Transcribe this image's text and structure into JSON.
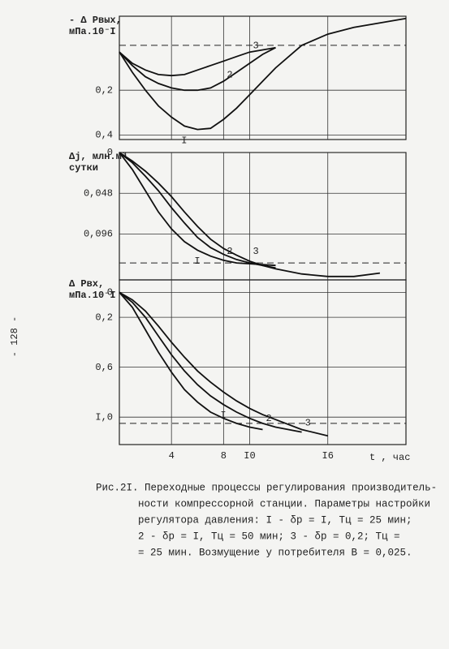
{
  "chart_data": [
    {
      "type": "line",
      "ylabel": [
        "- Δ Pвых,",
        "мПа.10⁻I"
      ],
      "inverted": true,
      "x": [
        0,
        1,
        2,
        3,
        4,
        5,
        6,
        7,
        8,
        9,
        10,
        11,
        12,
        14,
        16,
        18,
        20,
        22
      ],
      "xlim": [
        0,
        22
      ],
      "xticks": [
        4,
        8,
        10,
        16
      ],
      "ylim": [
        -0.13,
        0.42
      ],
      "yticks": [
        {
          "value": 0.2,
          "label": "0,2"
        },
        {
          "value": 0.4,
          "label": "0,4"
        }
      ],
      "hline": 0,
      "grid": true,
      "series": [
        {
          "name": "I",
          "color": "#111",
          "values": [
            0.03,
            0.12,
            0.2,
            0.27,
            0.32,
            0.36,
            0.375,
            0.37,
            0.33,
            0.28,
            0.22,
            0.16,
            0.1,
            0.0,
            -0.05,
            -0.08,
            -0.1,
            -0.12
          ]
        },
        {
          "name": "2",
          "color": "#111",
          "values": [
            0.03,
            0.09,
            0.14,
            0.17,
            0.19,
            0.2,
            0.2,
            0.19,
            0.16,
            0.12,
            0.08,
            0.04,
            0.01,
            null,
            null,
            null,
            null,
            null
          ]
        },
        {
          "name": "3",
          "color": "#111",
          "values": [
            0.03,
            0.08,
            0.11,
            0.13,
            0.135,
            0.13,
            0.11,
            0.09,
            0.07,
            0.05,
            0.03,
            0.02,
            0.01,
            null,
            null,
            null,
            null,
            null
          ]
        }
      ]
    },
    {
      "type": "line",
      "ylabel": [
        "Δj, млн.м³",
        "сутки"
      ],
      "inverted": true,
      "x": [
        0,
        1,
        2,
        3,
        4,
        5,
        6,
        7,
        8,
        9,
        10,
        11,
        12,
        14,
        16,
        18,
        20,
        22
      ],
      "xlim": [
        0,
        22
      ],
      "xticks": [
        4,
        8,
        10,
        16
      ],
      "ylim": [
        0,
        0.15
      ],
      "yticks": [
        0,
        {
          "value": 0.048,
          "label": "0,048"
        },
        {
          "value": 0.096,
          "label": "0,096"
        }
      ],
      "hline": 0.13,
      "grid": true,
      "series": [
        {
          "name": "I",
          "color": "#111",
          "values": [
            0,
            0.02,
            0.045,
            0.07,
            0.09,
            0.105,
            0.115,
            0.122,
            0.127,
            0.13,
            0.131,
            0.132,
            0.133,
            null,
            null,
            null,
            null,
            null
          ]
        },
        {
          "name": "2",
          "color": "#111",
          "values": [
            0,
            0.012,
            0.028,
            0.045,
            0.065,
            0.083,
            0.1,
            0.112,
            0.12,
            0.126,
            0.13,
            0.133,
            0.136,
            null,
            null,
            null,
            null,
            null
          ]
        },
        {
          "name": "3",
          "color": "#111",
          "values": [
            0,
            0.01,
            0.022,
            0.036,
            0.052,
            0.07,
            0.087,
            0.102,
            0.113,
            0.121,
            0.128,
            0.133,
            0.137,
            0.143,
            0.146,
            0.146,
            0.142,
            null
          ]
        }
      ]
    },
    {
      "type": "line",
      "ylabel": [
        "Δ Pвх,",
        "мПа.10⁻I"
      ],
      "inverted": true,
      "xlabel": "t , час",
      "x": [
        0,
        1,
        2,
        3,
        4,
        5,
        6,
        7,
        8,
        9,
        10,
        11,
        12,
        14,
        16,
        18,
        20,
        22
      ],
      "xlim": [
        0,
        22
      ],
      "xticks": [
        4,
        8,
        {
          "value": 10,
          "label": "I0"
        },
        {
          "value": 16,
          "label": "I6"
        }
      ],
      "ylim": [
        -0.1,
        1.22
      ],
      "yticks": [
        0,
        {
          "value": 0.2,
          "label": "0,2"
        },
        {
          "value": 0.6,
          "label": "0,6"
        },
        {
          "value": 1.0,
          "label": "I,0"
        }
      ],
      "hline": 1.05,
      "grid": true,
      "series": [
        {
          "name": "I",
          "color": "#111",
          "values": [
            0,
            0.12,
            0.3,
            0.48,
            0.64,
            0.78,
            0.88,
            0.96,
            1.01,
            1.05,
            1.08,
            1.1,
            null,
            null,
            null,
            null,
            null,
            null
          ]
        },
        {
          "name": "2",
          "color": "#111",
          "values": [
            0,
            0.08,
            0.2,
            0.35,
            0.5,
            0.63,
            0.74,
            0.83,
            0.9,
            0.96,
            1.01,
            1.05,
            1.08,
            1.12,
            null,
            null,
            null,
            null
          ]
        },
        {
          "name": "3",
          "color": "#111",
          "values": [
            0,
            0.06,
            0.15,
            0.27,
            0.4,
            0.52,
            0.63,
            0.72,
            0.8,
            0.87,
            0.93,
            0.98,
            1.02,
            1.1,
            1.15,
            null,
            null,
            null
          ]
        }
      ]
    }
  ],
  "page_number": "- 128 -",
  "caption": [
    "Рис.2I. Переходные процессы регулирования производитель-",
    "ности компрессорной станции. Параметры настройки",
    "регулятора давления: I - δр = I,  Тц = 25 мин;",
    "2 - δр = I,  Тц = 50 мин; 3 - δр = 0,2;  Тц =",
    "= 25 мин. Возмущение у потребителя  В = 0,025."
  ]
}
